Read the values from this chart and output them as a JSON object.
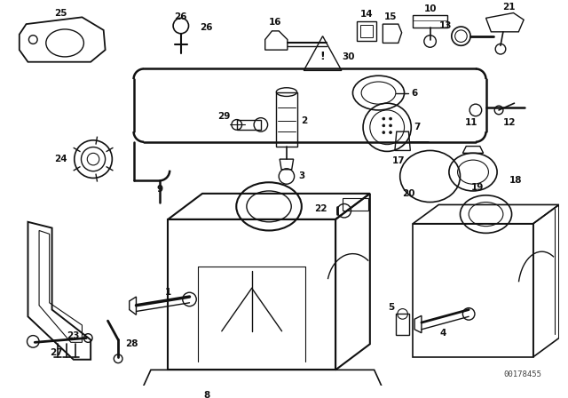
{
  "bg_color": "#ffffff",
  "line_color": "#111111",
  "watermark": "00178455",
  "font_size": 7.5,
  "lw": 1.0
}
